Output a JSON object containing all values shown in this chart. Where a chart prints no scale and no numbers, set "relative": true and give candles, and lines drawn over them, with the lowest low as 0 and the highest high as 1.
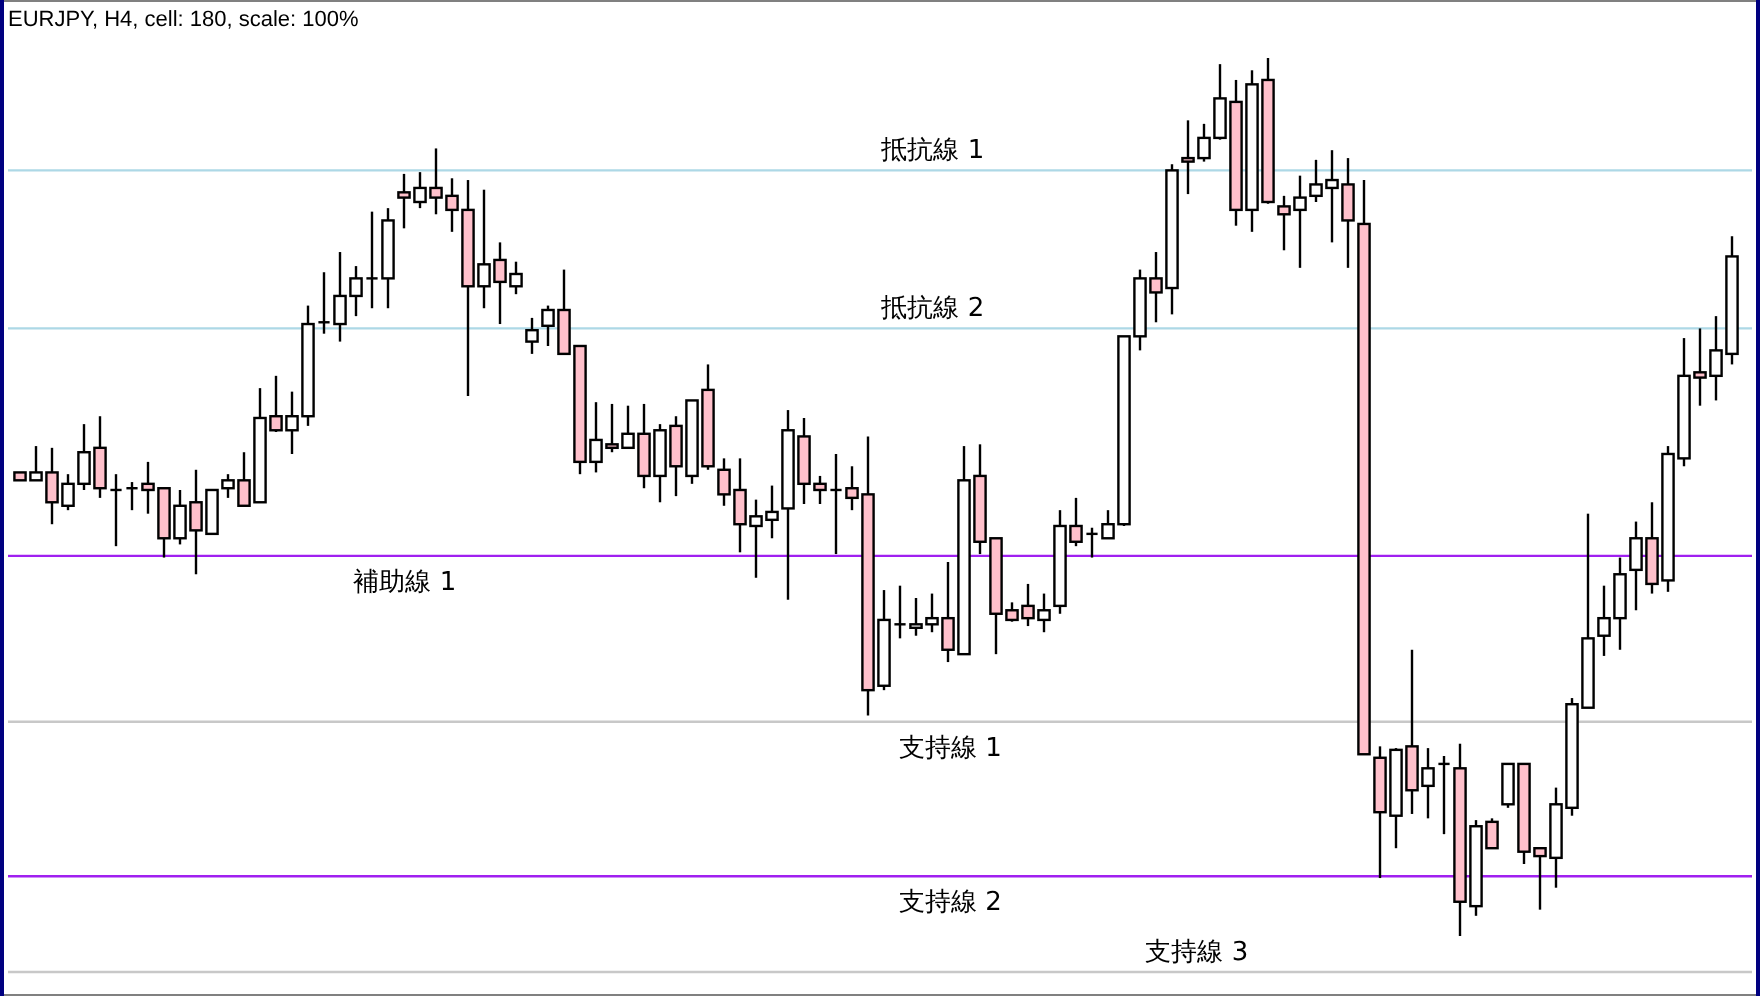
{
  "chart_data": {
    "type": "candlestick",
    "title": "EURJPY, H4, cell: 180, scale: 100%",
    "relative": true,
    "categories": [
      null,
      null,
      null,
      null,
      null,
      null,
      null,
      null,
      null,
      null,
      null,
      null,
      null,
      null,
      null,
      null,
      null,
      null,
      null,
      null,
      null,
      null,
      null,
      null,
      null,
      null,
      null,
      null,
      null,
      null,
      null,
      null,
      null,
      null,
      null,
      null,
      null,
      null,
      null,
      null,
      null,
      null,
      null,
      null,
      null,
      null,
      null,
      null,
      null,
      null,
      null,
      null,
      null,
      null,
      null,
      null,
      null,
      null,
      null,
      null,
      null,
      null,
      null,
      null,
      null,
      null,
      null,
      null,
      null,
      null,
      null,
      null,
      null,
      null,
      null,
      null,
      null,
      null,
      null,
      null,
      null,
      null,
      null,
      null,
      null,
      null,
      null,
      null,
      null,
      null,
      null,
      null,
      null,
      null,
      null,
      null,
      null,
      null,
      null,
      null,
      null,
      null,
      null,
      null,
      null,
      null,
      null,
      null
    ],
    "ohlc": [
      [
        0.528,
        0.528,
        0.519,
        0.519
      ],
      [
        0.519,
        0.558,
        0.519,
        0.528
      ],
      [
        0.528,
        0.556,
        0.469,
        0.494
      ],
      [
        0.49,
        0.526,
        0.485,
        0.515
      ],
      [
        0.515,
        0.583,
        0.508,
        0.551
      ],
      [
        0.556,
        0.592,
        0.499,
        0.51
      ],
      [
        0.508,
        0.526,
        0.444,
        0.508
      ],
      [
        0.51,
        0.517,
        0.485,
        0.51
      ],
      [
        0.515,
        0.54,
        0.481,
        0.508
      ],
      [
        0.51,
        0.51,
        0.431,
        0.453
      ],
      [
        0.453,
        0.508,
        0.446,
        0.49
      ],
      [
        0.494,
        0.531,
        0.412,
        0.462
      ],
      [
        0.458,
        0.508,
        0.458,
        0.508
      ],
      [
        0.51,
        0.526,
        0.499,
        0.519
      ],
      [
        0.519,
        0.551,
        0.49,
        0.49
      ],
      [
        0.494,
        0.624,
        0.494,
        0.59
      ],
      [
        0.592,
        0.638,
        0.574,
        0.576
      ],
      [
        0.576,
        0.62,
        0.549,
        0.592
      ],
      [
        0.592,
        0.718,
        0.581,
        0.697
      ],
      [
        0.699,
        0.756,
        0.686,
        0.699
      ],
      [
        0.697,
        0.779,
        0.677,
        0.729
      ],
      [
        0.729,
        0.763,
        0.706,
        0.749
      ],
      [
        0.749,
        0.825,
        0.715,
        0.749
      ],
      [
        0.749,
        0.829,
        0.715,
        0.815
      ],
      [
        0.847,
        0.868,
        0.806,
        0.841
      ],
      [
        0.836,
        0.87,
        0.829,
        0.852
      ],
      [
        0.852,
        0.897,
        0.822,
        0.841
      ],
      [
        0.843,
        0.863,
        0.802,
        0.827
      ],
      [
        0.827,
        0.861,
        0.615,
        0.74
      ],
      [
        0.74,
        0.85,
        0.715,
        0.765
      ],
      [
        0.77,
        0.79,
        0.697,
        0.745
      ],
      [
        0.74,
        0.768,
        0.731,
        0.754
      ],
      [
        0.677,
        0.704,
        0.663,
        0.69
      ],
      [
        0.695,
        0.718,
        0.672,
        0.713
      ],
      [
        0.713,
        0.759,
        0.663,
        0.663
      ],
      [
        0.672,
        0.672,
        0.526,
        0.54
      ],
      [
        0.54,
        0.608,
        0.528,
        0.565
      ],
      [
        0.56,
        0.606,
        0.551,
        0.556
      ],
      [
        0.556,
        0.604,
        0.556,
        0.572
      ],
      [
        0.572,
        0.606,
        0.51,
        0.524
      ],
      [
        0.524,
        0.583,
        0.494,
        0.576
      ],
      [
        0.581,
        0.592,
        0.501,
        0.535
      ],
      [
        0.524,
        0.61,
        0.515,
        0.61
      ],
      [
        0.622,
        0.651,
        0.531,
        0.535
      ],
      [
        0.531,
        0.544,
        0.49,
        0.503
      ],
      [
        0.508,
        0.544,
        0.437,
        0.469
      ],
      [
        0.467,
        0.497,
        0.408,
        0.478
      ],
      [
        0.474,
        0.513,
        0.453,
        0.483
      ],
      [
        0.487,
        0.599,
        0.383,
        0.576
      ],
      [
        0.569,
        0.59,
        0.492,
        0.515
      ],
      [
        0.515,
        0.524,
        0.492,
        0.508
      ],
      [
        0.508,
        0.549,
        0.435,
        0.508
      ],
      [
        0.51,
        0.535,
        0.485,
        0.499
      ],
      [
        0.503,
        0.569,
        0.251,
        0.28
      ],
      [
        0.285,
        0.394,
        0.28,
        0.36
      ],
      [
        0.355,
        0.399,
        0.339,
        0.355
      ],
      [
        0.351,
        0.385,
        0.342,
        0.355
      ],
      [
        0.355,
        0.39,
        0.346,
        0.362
      ],
      [
        0.362,
        0.426,
        0.312,
        0.326
      ],
      [
        0.321,
        0.558,
        0.321,
        0.519
      ],
      [
        0.524,
        0.56,
        0.435,
        0.449
      ],
      [
        0.453,
        0.453,
        0.321,
        0.367
      ],
      [
        0.371,
        0.38,
        0.358,
        0.36
      ],
      [
        0.376,
        0.401,
        0.353,
        0.362
      ],
      [
        0.36,
        0.39,
        0.346,
        0.371
      ],
      [
        0.376,
        0.485,
        0.367,
        0.467
      ],
      [
        0.467,
        0.499,
        0.444,
        0.449
      ],
      [
        0.458,
        0.465,
        0.431,
        0.458
      ],
      [
        0.453,
        0.485,
        0.453,
        0.469
      ],
      [
        0.469,
        0.683,
        0.467,
        0.683
      ],
      [
        0.683,
        0.759,
        0.667,
        0.749
      ],
      [
        0.749,
        0.779,
        0.699,
        0.733
      ],
      [
        0.738,
        0.879,
        0.708,
        0.872
      ],
      [
        0.886,
        0.929,
        0.845,
        0.882
      ],
      [
        0.886,
        0.925,
        0.882,
        0.909
      ],
      [
        0.909,
        0.993,
        0.907,
        0.954
      ],
      [
        0.95,
        0.975,
        0.809,
        0.827
      ],
      [
        0.827,
        0.986,
        0.802,
        0.97
      ],
      [
        0.975,
        1,
        0.834,
        0.836
      ],
      [
        0.831,
        0.843,
        0.781,
        0.822
      ],
      [
        0.827,
        0.866,
        0.761,
        0.841
      ],
      [
        0.843,
        0.884,
        0.836,
        0.856
      ],
      [
        0.852,
        0.895,
        0.79,
        0.861
      ],
      [
        0.856,
        0.886,
        0.761,
        0.815
      ],
      [
        0.811,
        0.861,
        0.207,
        0.207
      ],
      [
        0.203,
        0.216,
        0.066,
        0.141
      ],
      [
        0.137,
        0.214,
        0.1,
        0.212
      ],
      [
        0.216,
        0.326,
        0.139,
        0.166
      ],
      [
        0.171,
        0.214,
        0.134,
        0.191
      ],
      [
        0.196,
        0.205,
        0.116,
        0.196
      ],
      [
        0.191,
        0.219,
        0,
        0.039
      ],
      [
        0.034,
        0.132,
        0.023,
        0.125
      ],
      [
        0.13,
        0.134,
        0.1,
        0.1
      ],
      [
        0.15,
        0.196,
        0.146,
        0.196
      ],
      [
        0.196,
        0.196,
        0.082,
        0.096
      ],
      [
        0.1,
        0.1,
        0.03,
        0.091
      ],
      [
        0.089,
        0.169,
        0.055,
        0.15
      ],
      [
        0.146,
        0.271,
        0.137,
        0.264
      ],
      [
        0.26,
        0.481,
        0.26,
        0.339
      ],
      [
        0.342,
        0.399,
        0.319,
        0.362
      ],
      [
        0.362,
        0.431,
        0.326,
        0.412
      ],
      [
        0.417,
        0.472,
        0.371,
        0.453
      ],
      [
        0.453,
        0.494,
        0.39,
        0.401
      ],
      [
        0.405,
        0.558,
        0.392,
        0.549
      ],
      [
        0.544,
        0.681,
        0.535,
        0.638
      ],
      [
        0.642,
        0.692,
        0.604,
        0.636
      ],
      [
        0.638,
        0.706,
        0.61,
        0.667
      ],
      [
        0.663,
        0.797,
        0.651,
        0.774
      ]
    ],
    "ref_lines": [
      {
        "axis": "y",
        "value": 0.872,
        "label": "抵抗線 1",
        "color": "#add8e6"
      },
      {
        "axis": "y",
        "value": 0.692,
        "label": "抵抗線 2",
        "color": "#add8e6"
      },
      {
        "axis": "y",
        "value": 0.433,
        "label": "補助線 1",
        "color": "#a020f0"
      },
      {
        "axis": "y",
        "value": 0.244,
        "label": "支持線 1",
        "color": "#c8c8c8"
      },
      {
        "axis": "y",
        "value": 0.068,
        "label": "支持線 2",
        "color": "#a020f0"
      },
      {
        "axis": "y",
        "value": -0.041,
        "label": "支持線 3",
        "color": "#c8c8c8"
      }
    ]
  }
}
